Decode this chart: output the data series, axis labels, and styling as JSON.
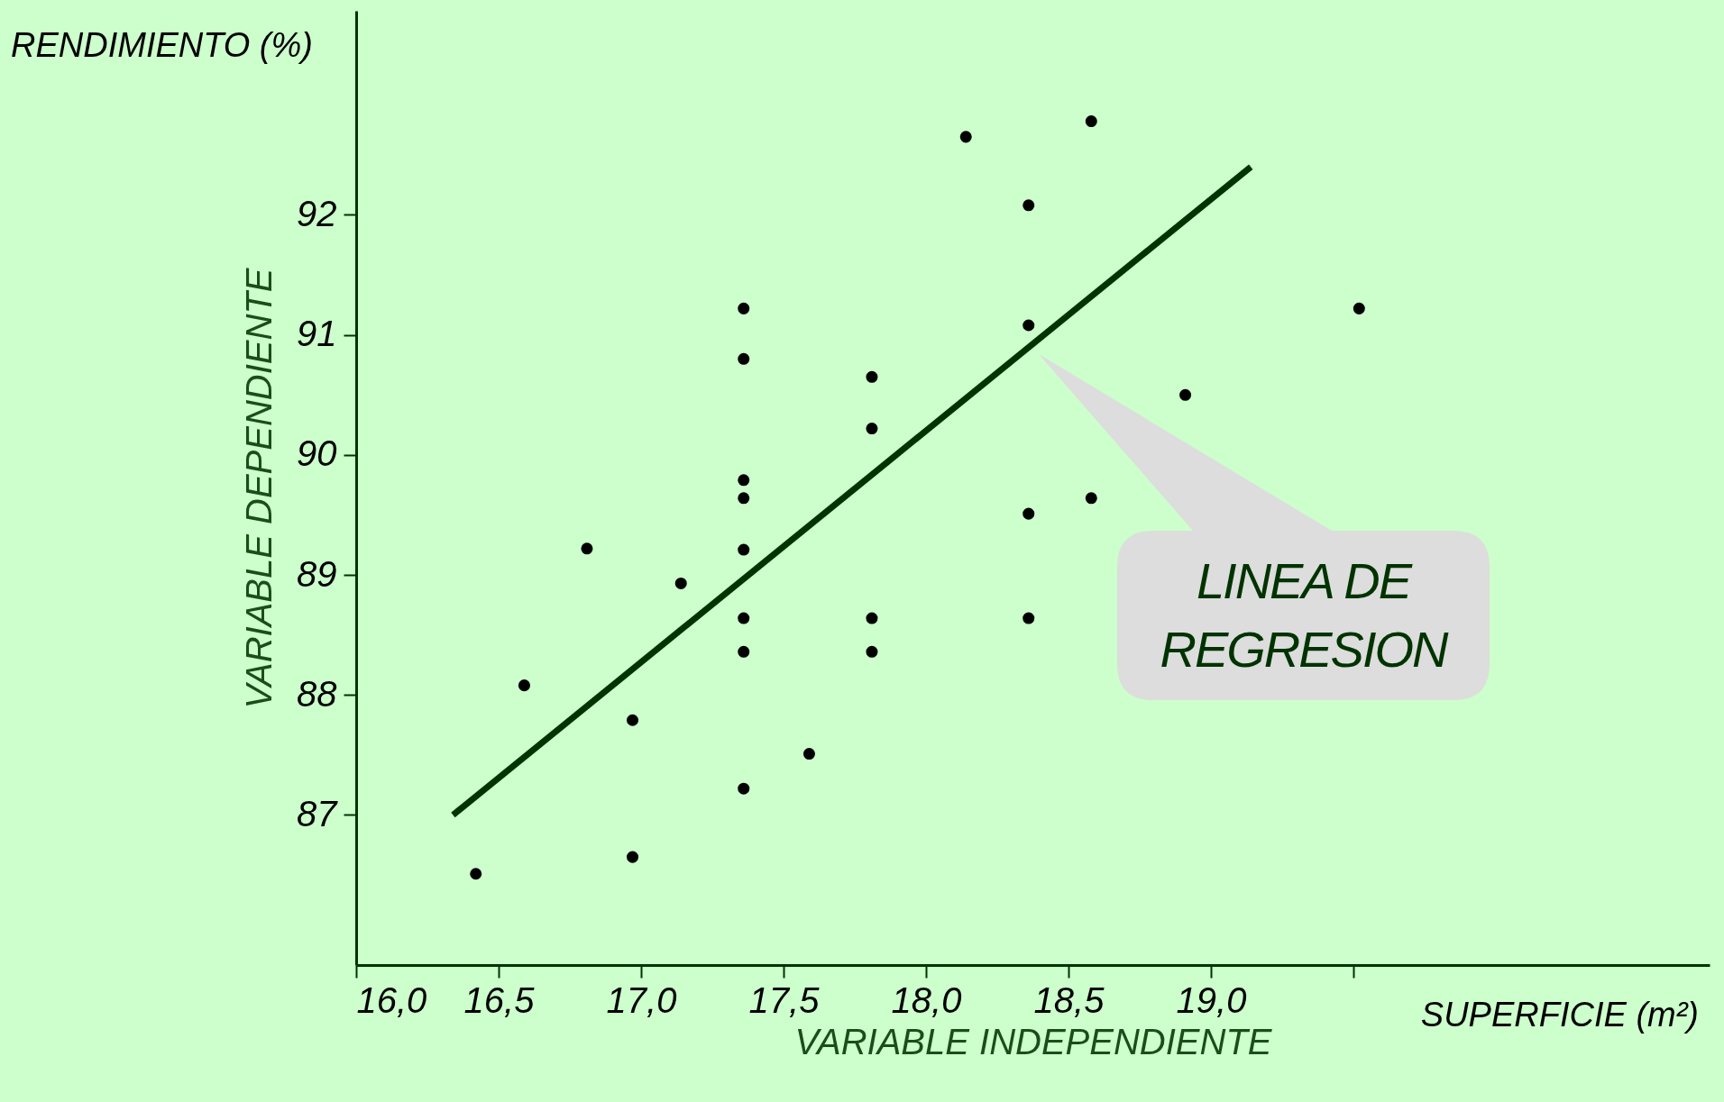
{
  "chart_data": {
    "type": "scatter",
    "xlabel": "VARIABLE INDEPENDIENTE",
    "ylabel": "VARIABLE DEPENDIENTE",
    "annotations": [
      "RENDIMIENTO (%)",
      "SUPERFICIE (m²)",
      "LINEA DE REGRESION"
    ],
    "xlim": [
      16,
      20.75
    ],
    "ylim": [
      85.75,
      93.7
    ],
    "xticks": [
      {
        "value": 16,
        "label": "16,0"
      },
      {
        "value": 16.5,
        "label": "16,5"
      },
      {
        "value": 17,
        "label": "17,0"
      },
      {
        "value": 17.5,
        "label": "17,5"
      },
      {
        "value": 18,
        "label": "18,0"
      },
      {
        "value": 18.5,
        "label": "18,5"
      },
      {
        "value": 19,
        "label": "19,0"
      },
      {
        "value": 19.5,
        "label": null
      }
    ],
    "yticks": [
      87,
      88,
      89,
      90,
      91,
      92
    ],
    "grid": false,
    "series": [
      {
        "color": "#000000",
        "marker": "circle",
        "x": [
          16.42,
          16.59,
          16.81,
          16.97,
          16.97,
          17.14,
          17.36,
          17.36,
          17.36,
          17.36,
          17.36,
          17.36,
          17.36,
          17.36,
          17.59,
          17.81,
          17.81,
          17.81,
          17.81,
          18.14,
          18.36,
          18.36,
          18.36,
          18.36,
          18.58,
          18.58,
          18.91,
          19.52
        ],
        "values": [
          86.51,
          88.08,
          89.22,
          87.79,
          86.65,
          88.93,
          91.22,
          90.8,
          89.79,
          89.64,
          89.21,
          88.64,
          88.36,
          87.22,
          87.51,
          90.65,
          90.22,
          88.64,
          88.36,
          92.65,
          92.08,
          91.08,
          89.51,
          88.64,
          92.78,
          89.64,
          90.5,
          91.22
        ]
      },
      {
        "type": "line",
        "color": "#003300",
        "marker": "none",
        "x": [
          16.34,
          19.14
        ],
        "values": [
          87.0,
          92.4
        ]
      }
    ]
  }
}
